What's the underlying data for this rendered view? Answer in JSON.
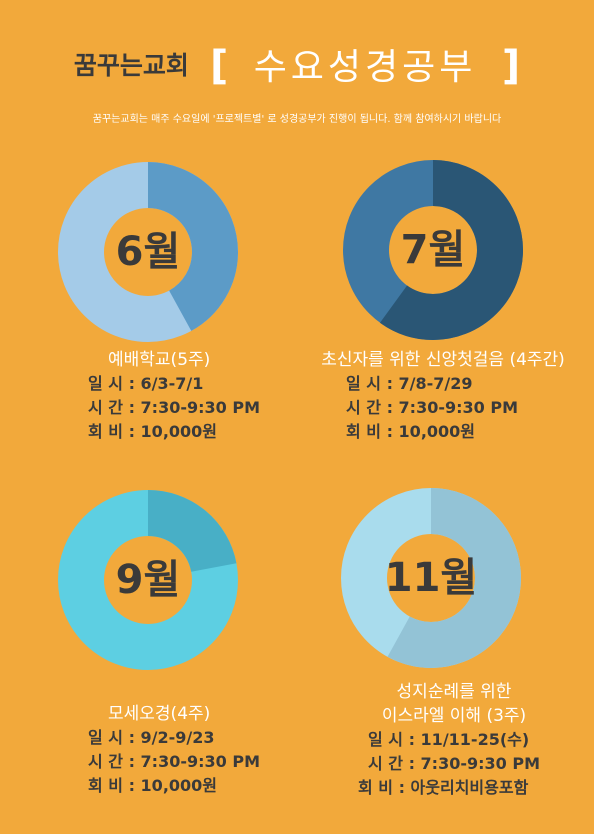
{
  "header": {
    "church": "꿈꾸는교회",
    "bracket_open": "[",
    "title": "수요성경공부",
    "bracket_close": "]",
    "subtitle": "꿈꾸는교회는 매주 수요일에 '프로젝트별' 로 성경공부가 진행이 됩니다. 함께 참여하시기 바랍니다"
  },
  "colors": {
    "background": "#f2a93b",
    "june_light": "#a4cbe8",
    "june_dark": "#5c9bc7",
    "july_light": "#3f78a3",
    "july_dark": "#2a5675",
    "sept_light": "#5dcfe2",
    "sept_dark": "#48afc6",
    "nov_light": "#a9dced",
    "nov_dark": "#93c3d6"
  },
  "schedule": [
    {
      "month": "6월",
      "fraction": 0.42,
      "course": "예배학교(5주)",
      "date": "일 시 : 6/3-7/1",
      "time": "시 간 : 7:30-9:30 PM",
      "fee": "회 비 : 10,000원"
    },
    {
      "month": "7월",
      "fraction": 0.6,
      "course": "초신자를 위한 신앙첫걸음 (4주간)",
      "date": "일 시 : 7/8-7/29",
      "time": "시 간 : 7:30-9:30 PM",
      "fee": "회 비 : 10,000원"
    },
    {
      "month": "9월",
      "fraction": 0.22,
      "course": "모세오경(4주)",
      "date": "일 시 : 9/2-9/23",
      "time": "시 간 : 7:30-9:30 PM",
      "fee": "회 비 : 10,000원"
    },
    {
      "month": "11월",
      "fraction": 0.58,
      "course_line1": "성지순례를 위한",
      "course_line2": "이스라엘 이해 (3주)",
      "date": "일 시 : 11/11-25(수)",
      "time": "시 간 : 7:30-9:30 PM",
      "fee": "회 비 : 아웃리치비용포함"
    }
  ]
}
